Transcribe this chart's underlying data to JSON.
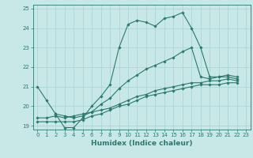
{
  "title": "",
  "xlabel": "Humidex (Indice chaleur)",
  "xlim": [
    -0.5,
    23.5
  ],
  "ylim": [
    18.8,
    25.2
  ],
  "yticks": [
    19,
    20,
    21,
    22,
    23,
    24,
    25
  ],
  "xticks": [
    0,
    1,
    2,
    3,
    4,
    5,
    6,
    7,
    8,
    9,
    10,
    11,
    12,
    13,
    14,
    15,
    16,
    17,
    18,
    19,
    20,
    21,
    22,
    23
  ],
  "bg_color": "#c8e8e8",
  "line_color": "#2a7a6a",
  "grid_color": "#a8d0d0",
  "series": [
    {
      "x": [
        0,
        1,
        2,
        3,
        4,
        5,
        6,
        7,
        8,
        9,
        10,
        11,
        12,
        13,
        14,
        15,
        16,
        17,
        18,
        19,
        20,
        21,
        22
      ],
      "y": [
        21.0,
        20.3,
        19.6,
        18.9,
        18.9,
        19.4,
        20.0,
        20.5,
        21.1,
        23.0,
        24.2,
        24.4,
        24.3,
        24.1,
        24.5,
        24.6,
        24.8,
        24.0,
        23.0,
        21.5,
        21.5,
        21.6,
        21.5
      ]
    },
    {
      "x": [
        2,
        3,
        4,
        5,
        6,
        7,
        8,
        9,
        10,
        11,
        12,
        13,
        14,
        15,
        16,
        17,
        18,
        19,
        20,
        21,
        22
      ],
      "y": [
        19.6,
        19.5,
        19.4,
        19.5,
        19.7,
        20.1,
        20.4,
        20.9,
        21.3,
        21.6,
        21.9,
        22.1,
        22.3,
        22.5,
        22.8,
        23.0,
        21.5,
        21.4,
        21.5,
        21.5,
        21.4
      ]
    },
    {
      "x": [
        0,
        1,
        2,
        3,
        4,
        5,
        6,
        7,
        8,
        9,
        10,
        11,
        12,
        13,
        14,
        15,
        16,
        17,
        18,
        19,
        20,
        21,
        22
      ],
      "y": [
        19.4,
        19.4,
        19.5,
        19.4,
        19.5,
        19.6,
        19.7,
        19.8,
        19.9,
        20.1,
        20.3,
        20.5,
        20.6,
        20.8,
        20.9,
        21.0,
        21.1,
        21.2,
        21.2,
        21.3,
        21.3,
        21.4,
        21.3
      ]
    },
    {
      "x": [
        0,
        1,
        2,
        3,
        4,
        5,
        6,
        7,
        8,
        9,
        10,
        11,
        12,
        13,
        14,
        15,
        16,
        17,
        18,
        19,
        20,
        21,
        22
      ],
      "y": [
        19.2,
        19.2,
        19.2,
        19.2,
        19.2,
        19.3,
        19.5,
        19.6,
        19.8,
        20.0,
        20.1,
        20.3,
        20.5,
        20.6,
        20.7,
        20.8,
        20.9,
        21.0,
        21.1,
        21.1,
        21.1,
        21.2,
        21.2
      ]
    }
  ]
}
